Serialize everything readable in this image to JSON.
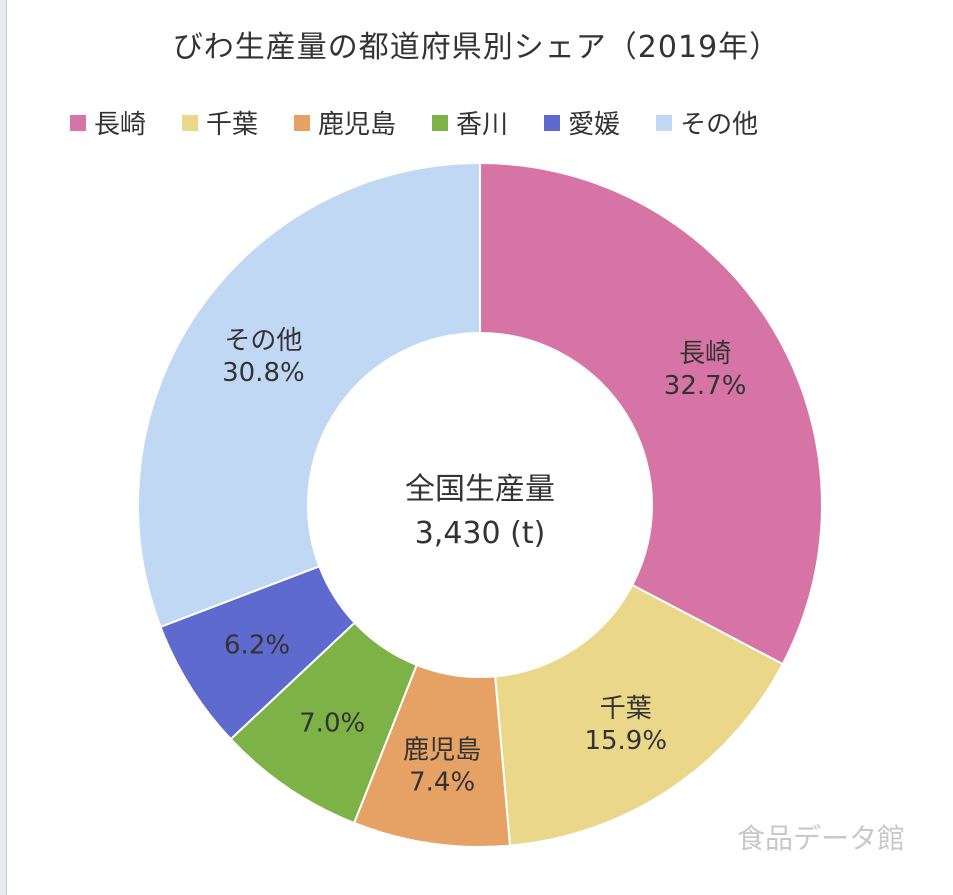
{
  "chart_data": {
    "type": "pie",
    "title": "びわ生産量の都道府県別シェア（2019年）",
    "center_label": "全国生産量",
    "center_value": "3,430 (t)",
    "legend_position": "top",
    "series": [
      {
        "name": "長崎",
        "value": 32.7,
        "label": "32.7%",
        "color": "#d674a6",
        "show_name": true
      },
      {
        "name": "千葉",
        "value": 15.9,
        "label": "15.9%",
        "color": "#ead78a",
        "show_name": true
      },
      {
        "name": "鹿児島",
        "value": 7.4,
        "label": "7.4%",
        "color": "#e6a264",
        "show_name": true
      },
      {
        "name": "香川",
        "value": 7.0,
        "label": "7.0%",
        "color": "#7db346",
        "show_name": false
      },
      {
        "name": "愛媛",
        "value": 6.2,
        "label": "6.2%",
        "color": "#5e6acd",
        "show_name": false
      },
      {
        "name": "その他",
        "value": 30.8,
        "label": "30.8%",
        "color": "#c0d8f4",
        "show_name": true
      }
    ]
  },
  "watermark": "食品データ館"
}
